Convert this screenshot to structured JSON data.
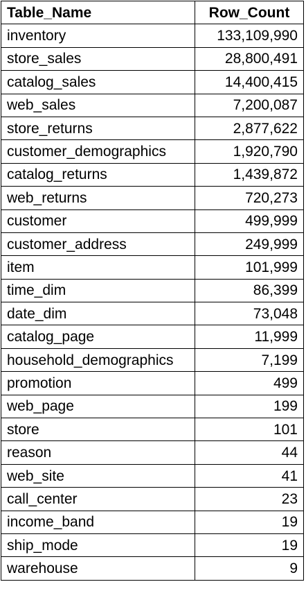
{
  "table": {
    "headers": {
      "name": "Table_Name",
      "count": "Row_Count"
    },
    "rows": [
      {
        "name": "inventory",
        "count": "133,109,990"
      },
      {
        "name": "store_sales",
        "count": "28,800,491"
      },
      {
        "name": "catalog_sales",
        "count": "14,400,415"
      },
      {
        "name": "web_sales",
        "count": "7,200,087"
      },
      {
        "name": "store_returns",
        "count": "2,877,622"
      },
      {
        "name": "customer_demographics",
        "count": "1,920,790"
      },
      {
        "name": "catalog_returns",
        "count": "1,439,872"
      },
      {
        "name": "web_returns",
        "count": "720,273"
      },
      {
        "name": "customer",
        "count": "499,999"
      },
      {
        "name": "customer_address",
        "count": "249,999"
      },
      {
        "name": "item",
        "count": "101,999"
      },
      {
        "name": "time_dim",
        "count": "86,399"
      },
      {
        "name": "date_dim",
        "count": "73,048"
      },
      {
        "name": "catalog_page",
        "count": "11,999"
      },
      {
        "name": "household_demographics",
        "count": "7,199"
      },
      {
        "name": "promotion",
        "count": "499"
      },
      {
        "name": "web_page",
        "count": "199"
      },
      {
        "name": "store",
        "count": "101"
      },
      {
        "name": "reason",
        "count": "44"
      },
      {
        "name": "web_site",
        "count": "41"
      },
      {
        "name": "call_center",
        "count": "23"
      },
      {
        "name": "income_band",
        "count": "19"
      },
      {
        "name": "ship_mode",
        "count": "19"
      },
      {
        "name": "warehouse",
        "count": "9"
      }
    ]
  }
}
